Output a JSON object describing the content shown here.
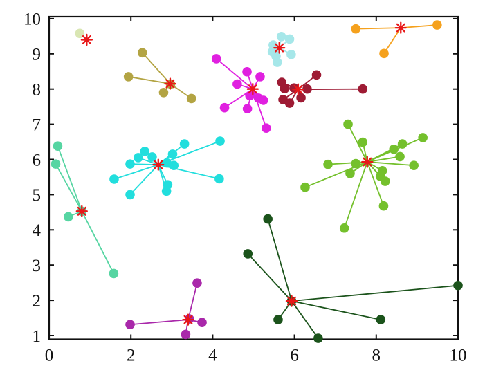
{
  "figure": {
    "background": "#ffffff",
    "axis_color": "#111111",
    "tick_label_font_px": 25
  },
  "chart_data": {
    "type": "scatter",
    "title": "",
    "xlabel": "",
    "ylabel": "",
    "grid": false,
    "legend": false,
    "x_axis": {
      "range": [
        0,
        10
      ],
      "tick_values": [
        0,
        2,
        4,
        6,
        8,
        10
      ],
      "tick_labels": [
        "0",
        "2",
        "4",
        "6",
        "8",
        "10"
      ]
    },
    "y_axis": {
      "range": [
        1,
        10
      ],
      "tick_values": [
        1,
        2,
        3,
        4,
        5,
        6,
        7,
        8,
        9,
        10
      ],
      "tick_labels": [
        "1",
        "2",
        "3",
        "4",
        "5",
        "6",
        "7",
        "8",
        "9",
        "10"
      ]
    },
    "centroid_marker": {
      "shape": "asterisk",
      "color": "#e81818"
    },
    "description": "Clustering result: colored point clusters, each point connected by a line to its cluster centroid drawn as a red asterisk",
    "clusters": [
      {
        "name": "pale-green",
        "color": "#d9e6b3",
        "centroid": [
          0.92,
          9.4
        ],
        "points": [
          [
            0.75,
            9.58
          ]
        ]
      },
      {
        "name": "olive",
        "color": "#b3a443",
        "centroid": [
          2.96,
          8.15
        ],
        "points": [
          [
            2.28,
            9.03
          ],
          [
            1.94,
            8.35
          ],
          [
            2.97,
            8.14
          ],
          [
            2.8,
            7.9
          ],
          [
            3.48,
            7.73
          ]
        ]
      },
      {
        "name": "magenta",
        "color": "#e020e0",
        "centroid": [
          4.98,
          8.0
        ],
        "points": [
          [
            4.09,
            8.86
          ],
          [
            4.84,
            8.49
          ],
          [
            5.16,
            8.35
          ],
          [
            4.6,
            8.14
          ],
          [
            4.91,
            7.81
          ],
          [
            5.12,
            7.74
          ],
          [
            5.24,
            7.68
          ],
          [
            4.29,
            7.47
          ],
          [
            4.85,
            7.44
          ],
          [
            5.31,
            6.89
          ]
        ]
      },
      {
        "name": "pale-cyan",
        "color": "#a6e7e9",
        "centroid": [
          5.63,
          9.17
        ],
        "points": [
          [
            5.68,
            9.49
          ],
          [
            5.88,
            9.42
          ],
          [
            5.48,
            9.25
          ],
          [
            5.46,
            9.06
          ],
          [
            5.55,
            8.93
          ],
          [
            5.92,
            8.98
          ],
          [
            5.58,
            8.76
          ]
        ]
      },
      {
        "name": "orange",
        "color": "#f5a11d",
        "centroid": [
          8.6,
          9.74
        ],
        "points": [
          [
            7.5,
            9.71
          ],
          [
            8.19,
            9.01
          ],
          [
            9.49,
            9.82
          ]
        ]
      },
      {
        "name": "dark-red",
        "color": "#9e1b34",
        "centroid": [
          6.09,
          7.99
        ],
        "points": [
          [
            6.54,
            8.4
          ],
          [
            5.69,
            8.19
          ],
          [
            5.76,
            8.01
          ],
          [
            5.99,
            8.03
          ],
          [
            6.31,
            8.0
          ],
          [
            7.67,
            8.0
          ],
          [
            5.72,
            7.7
          ],
          [
            5.88,
            7.6
          ],
          [
            6.16,
            7.75
          ]
        ]
      },
      {
        "name": "cyan",
        "color": "#22dedd",
        "centroid": [
          2.67,
          5.85
        ],
        "points": [
          [
            1.98,
            5.87
          ],
          [
            2.18,
            6.05
          ],
          [
            2.34,
            6.23
          ],
          [
            2.52,
            6.07
          ],
          [
            3.02,
            6.15
          ],
          [
            3.31,
            6.44
          ],
          [
            4.18,
            6.52
          ],
          [
            2.88,
            5.9
          ],
          [
            3.05,
            5.83
          ],
          [
            4.16,
            5.45
          ],
          [
            1.59,
            5.44
          ],
          [
            1.98,
            5.0
          ],
          [
            2.9,
            5.28
          ],
          [
            2.87,
            5.1
          ]
        ]
      },
      {
        "name": "teal",
        "color": "#56d5a2",
        "centroid": [
          0.8,
          4.53
        ],
        "points": [
          [
            0.21,
            6.38
          ],
          [
            0.16,
            5.87
          ],
          [
            0.47,
            4.37
          ],
          [
            1.58,
            2.76
          ],
          [
            0.8,
            4.53
          ]
        ]
      },
      {
        "name": "yellow-green",
        "color": "#74c02c",
        "centroid": [
          7.78,
          5.93
        ],
        "points": [
          [
            7.31,
            7.0
          ],
          [
            7.67,
            6.49
          ],
          [
            8.43,
            6.29
          ],
          [
            8.64,
            6.44
          ],
          [
            9.14,
            6.62
          ],
          [
            8.58,
            6.08
          ],
          [
            8.92,
            5.83
          ],
          [
            6.82,
            5.86
          ],
          [
            7.5,
            5.88
          ],
          [
            7.36,
            5.6
          ],
          [
            6.26,
            5.21
          ],
          [
            8.15,
            5.68
          ],
          [
            8.1,
            5.52
          ],
          [
            8.22,
            5.38
          ],
          [
            8.18,
            4.68
          ],
          [
            7.22,
            4.05
          ]
        ]
      },
      {
        "name": "purple",
        "color": "#a928aa",
        "centroid": [
          3.4,
          1.45
        ],
        "points": [
          [
            1.98,
            1.31
          ],
          [
            3.62,
            2.49
          ],
          [
            3.74,
            1.37
          ],
          [
            3.34,
            1.03
          ],
          [
            3.43,
            1.47
          ]
        ]
      },
      {
        "name": "dark-green",
        "color": "#1b531b",
        "centroid": [
          5.93,
          1.98
        ],
        "points": [
          [
            5.35,
            4.31
          ],
          [
            4.86,
            3.32
          ],
          [
            5.6,
            1.45
          ],
          [
            6.58,
            0.92
          ],
          [
            8.11,
            1.45
          ],
          [
            10.0,
            2.42
          ],
          [
            5.93,
            1.98
          ]
        ]
      }
    ]
  }
}
